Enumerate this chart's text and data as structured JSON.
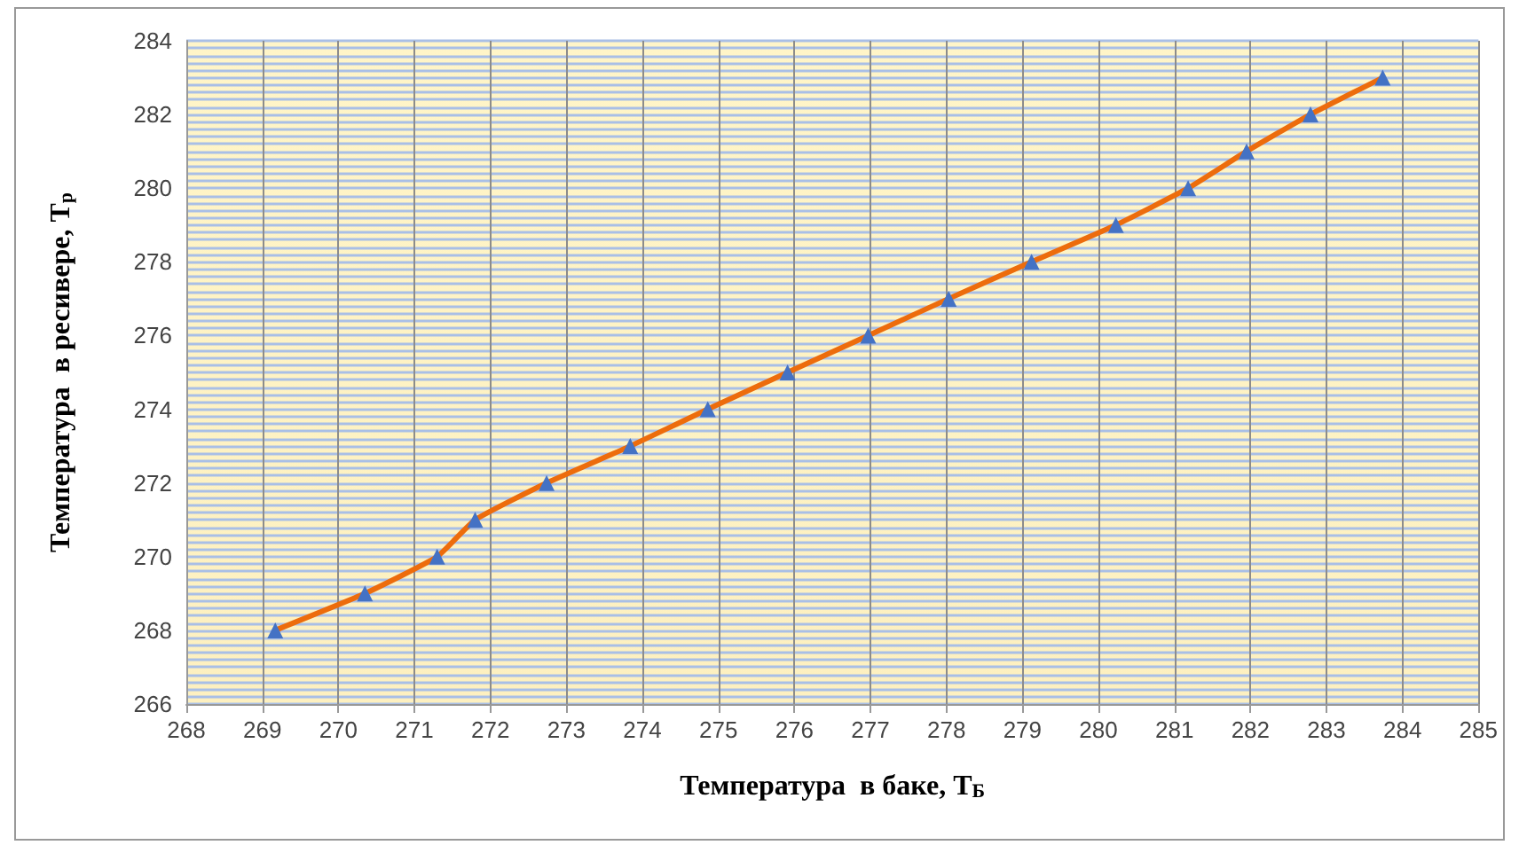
{
  "chart_data": {
    "type": "line",
    "xlabel": "Температура  в баке, Т$_{Б}$",
    "ylabel": "Температура  в ресивере, Т$_{р}$",
    "series": [
      {
        "color": "#ed6c0c",
        "x": [
          269.17,
          270.35,
          271.3,
          271.8,
          272.74,
          273.84,
          274.86,
          275.91,
          276.97,
          278.03,
          279.12,
          280.23,
          281.18,
          281.95,
          282.79,
          283.74
        ],
        "values": [
          268,
          269,
          270,
          271,
          272,
          273,
          274,
          275,
          276,
          277,
          278,
          279,
          280,
          281,
          282,
          283
        ]
      }
    ],
    "xlim": [
      268,
      285
    ],
    "xticks": [
      268,
      269,
      270,
      271,
      272,
      273,
      274,
      275,
      276,
      277,
      278,
      279,
      280,
      281,
      282,
      283,
      284,
      285
    ],
    "ylim": [
      266,
      284
    ],
    "yticks": [
      266,
      {
        "value": 266.2,
        "label": null
      },
      {
        "value": 266.4,
        "label": null
      },
      {
        "value": 266.6,
        "label": null
      },
      {
        "value": 266.8,
        "label": null
      },
      {
        "value": 267,
        "label": null
      },
      {
        "value": 267.2,
        "label": null
      },
      {
        "value": 267.4,
        "label": null
      },
      {
        "value": 267.6,
        "label": null
      },
      {
        "value": 267.8,
        "label": null
      },
      268,
      {
        "value": 268.2,
        "label": null
      },
      {
        "value": 268.4,
        "label": null
      },
      {
        "value": 268.6,
        "label": null
      },
      {
        "value": 268.8,
        "label": null
      },
      {
        "value": 269,
        "label": null
      },
      {
        "value": 269.2,
        "label": null
      },
      {
        "value": 269.4,
        "label": null
      },
      {
        "value": 269.6,
        "label": null
      },
      {
        "value": 269.8,
        "label": null
      },
      270,
      {
        "value": 270.2,
        "label": null
      },
      {
        "value": 270.4,
        "label": null
      },
      {
        "value": 270.6,
        "label": null
      },
      {
        "value": 270.8,
        "label": null
      },
      {
        "value": 271,
        "label": null
      },
      {
        "value": 271.2,
        "label": null
      },
      {
        "value": 271.4,
        "label": null
      },
      {
        "value": 271.6,
        "label": null
      },
      {
        "value": 271.8,
        "label": null
      },
      272,
      {
        "value": 272.2,
        "label": null
      },
      {
        "value": 272.4,
        "label": null
      },
      {
        "value": 272.6,
        "label": null
      },
      {
        "value": 272.8,
        "label": null
      },
      {
        "value": 273,
        "label": null
      },
      {
        "value": 273.2,
        "label": null
      },
      {
        "value": 273.4,
        "label": null
      },
      {
        "value": 273.6,
        "label": null
      },
      {
        "value": 273.8,
        "label": null
      },
      274,
      {
        "value": 274.2,
        "label": null
      },
      {
        "value": 274.4,
        "label": null
      },
      {
        "value": 274.6,
        "label": null
      },
      {
        "value": 274.8,
        "label": null
      },
      {
        "value": 275,
        "label": null
      },
      {
        "value": 275.2,
        "label": null
      },
      {
        "value": 275.4,
        "label": null
      },
      {
        "value": 275.6,
        "label": null
      },
      {
        "value": 275.8,
        "label": null
      },
      276,
      {
        "value": 276.2,
        "label": null
      },
      {
        "value": 276.4,
        "label": null
      },
      {
        "value": 276.6,
        "label": null
      },
      {
        "value": 276.8,
        "label": null
      },
      {
        "value": 277,
        "label": null
      },
      {
        "value": 277.2,
        "label": null
      },
      {
        "value": 277.4,
        "label": null
      },
      {
        "value": 277.6,
        "label": null
      },
      {
        "value": 277.8,
        "label": null
      },
      278,
      {
        "value": 278.2,
        "label": null
      },
      {
        "value": 278.4,
        "label": null
      },
      {
        "value": 278.6,
        "label": null
      },
      {
        "value": 278.8,
        "label": null
      },
      {
        "value": 279,
        "label": null
      },
      {
        "value": 279.2,
        "label": null
      },
      {
        "value": 279.4,
        "label": null
      },
      {
        "value": 279.6,
        "label": null
      },
      {
        "value": 279.8,
        "label": null
      },
      280,
      {
        "value": 280.2,
        "label": null
      },
      {
        "value": 280.4,
        "label": null
      },
      {
        "value": 280.6,
        "label": null
      },
      {
        "value": 280.8,
        "label": null
      },
      {
        "value": 281,
        "label": null
      },
      {
        "value": 281.2,
        "label": null
      },
      {
        "value": 281.4,
        "label": null
      },
      {
        "value": 281.6,
        "label": null
      },
      {
        "value": 281.8,
        "label": null
      },
      282,
      {
        "value": 282.2,
        "label": null
      },
      {
        "value": 282.4,
        "label": null
      },
      {
        "value": 282.6,
        "label": null
      },
      {
        "value": 282.8,
        "label": null
      },
      {
        "value": 283,
        "label": null
      },
      {
        "value": 283.2,
        "label": null
      },
      {
        "value": 283.4,
        "label": null
      },
      {
        "value": 283.6,
        "label": null
      },
      {
        "value": 283.8,
        "label": null
      },
      284
    ],
    "grid": true,
    "marker": "triangle",
    "line_style": "solid"
  }
}
